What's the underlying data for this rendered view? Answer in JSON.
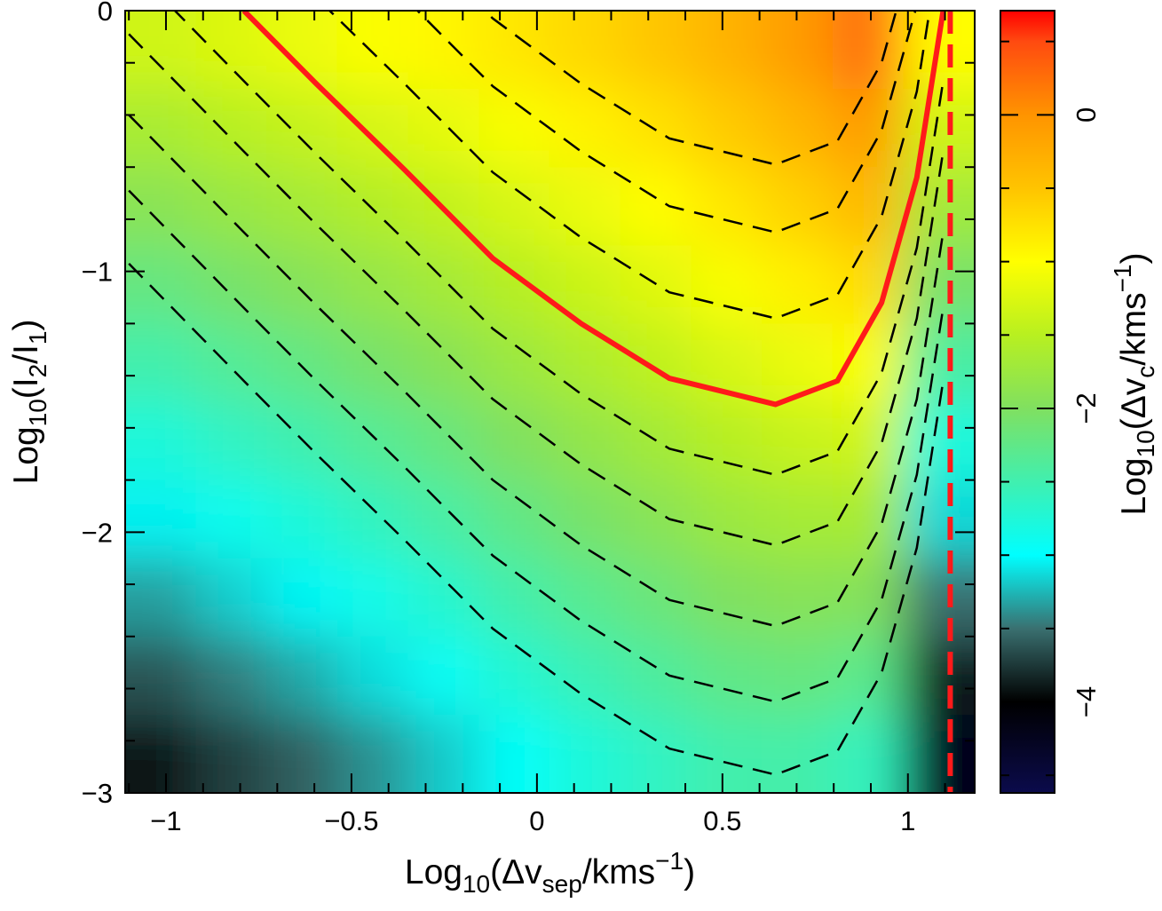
{
  "chart_data": {
    "type": "heatmap",
    "xlabel": [
      {
        "text": "Log"
      },
      {
        "text": "10",
        "style": "sub"
      },
      {
        "text": "(Δv"
      },
      {
        "text": "sep",
        "style": "sub"
      },
      {
        "text": "/kms"
      },
      {
        "text": "−1",
        "style": "sup"
      },
      {
        "text": ")"
      }
    ],
    "ylabel": [
      {
        "text": "Log"
      },
      {
        "text": "10",
        "style": "sub"
      },
      {
        "text": "(I"
      },
      {
        "text": "2",
        "style": "sub"
      },
      {
        "text": "/I"
      },
      {
        "text": "1",
        "style": "sub"
      },
      {
        "text": ")"
      }
    ],
    "colorbar_label": [
      {
        "text": "Log"
      },
      {
        "text": "10",
        "style": "sub"
      },
      {
        "text": "(Δv"
      },
      {
        "text": "c",
        "style": "sub"
      },
      {
        "text": "/kms"
      },
      {
        "text": "−1",
        "style": "sup"
      },
      {
        "text": ")"
      }
    ],
    "xlim": [
      -1.11,
      1.18
    ],
    "ylim": [
      -3,
      0
    ],
    "xticks": [
      {
        "value": -1,
        "label": "−1"
      },
      {
        "value": -0.5,
        "label": "−0.5"
      },
      0,
      0.5,
      1
    ],
    "yticks": [
      0,
      {
        "value": -1,
        "label": "−1"
      },
      {
        "value": -2,
        "label": "−2"
      },
      {
        "value": -3,
        "label": "−3"
      }
    ],
    "xminor": [
      -1.1,
      -0.9,
      -0.8,
      -0.7,
      -0.6,
      -0.4,
      -0.3,
      -0.2,
      -0.1,
      0.1,
      0.2,
      0.3,
      0.4,
      0.6,
      0.7,
      0.8,
      0.9,
      1.1
    ],
    "yminor": [
      -0.2,
      -0.4,
      -0.6,
      -0.8,
      -1.2,
      -1.4,
      -1.6,
      -1.8,
      -2.2,
      -2.4,
      -2.6,
      -2.8
    ],
    "clim": [
      -4.62,
      0.71
    ],
    "cticks": [
      0,
      {
        "value": -2,
        "label": "−2"
      },
      {
        "value": -4,
        "label": "−4"
      }
    ],
    "cminor": [
      0.5,
      -0.5,
      -1,
      -1.5,
      -2.5,
      -3,
      -3.5,
      -4.5
    ],
    "colormap": [
      {
        "value": -4.62,
        "color": "#0b0b4c"
      },
      {
        "value": -4.0,
        "color": "#000000"
      },
      {
        "value": -3.5,
        "color": "#3a7070"
      },
      {
        "value": -3.0,
        "color": "#00ffff"
      },
      {
        "value": -2.0,
        "color": "#80e060"
      },
      {
        "value": -1.5,
        "color": "#b8f020"
      },
      {
        "value": -1.0,
        "color": "#ffff00"
      },
      {
        "value": -0.5,
        "color": "#ffc400"
      },
      {
        "value": 0.0,
        "color": "#ff9400"
      },
      {
        "value": 0.5,
        "color": "#ff4a10"
      },
      {
        "value": 0.71,
        "color": "#ff0000"
      }
    ],
    "x": [
      -1.015,
      -0.824,
      -0.634,
      -0.443,
      -0.252,
      -0.062,
      0.129,
      0.32,
      0.511,
      0.701,
      0.892,
      1.083
    ],
    "y": [
      -0.15,
      -0.45,
      -0.75,
      -1.05,
      -1.35,
      -1.65,
      -1.95,
      -2.25,
      -2.55,
      -2.85
    ],
    "z": [
      [
        -1.34,
        -1.24,
        -1.14,
        -1.03,
        -0.93,
        -0.8,
        -0.67,
        -0.52,
        -0.32,
        -0.08,
        0.24,
        -0.98
      ],
      [
        -1.63,
        -1.51,
        -1.41,
        -1.29,
        -1.18,
        -1.04,
        -0.9,
        -0.75,
        -0.56,
        -0.35,
        -0.07,
        -1.34
      ],
      [
        -1.91,
        -1.79,
        -1.68,
        -1.55,
        -1.43,
        -1.28,
        -1.14,
        -0.99,
        -0.8,
        -0.61,
        -0.39,
        -1.7
      ],
      [
        -2.2,
        -2.07,
        -1.95,
        -1.81,
        -1.68,
        -1.52,
        -1.37,
        -1.22,
        -1.04,
        -0.87,
        -0.7,
        -2.06
      ],
      [
        -2.48,
        -2.34,
        -2.22,
        -2.07,
        -1.93,
        -1.76,
        -1.6,
        -1.45,
        -1.28,
        -1.14,
        -1.02,
        -2.42
      ],
      [
        -2.77,
        -2.62,
        -2.49,
        -2.34,
        -2.19,
        -2.0,
        -1.84,
        -1.69,
        -1.52,
        -1.4,
        -1.33,
        -2.78
      ],
      [
        -3.05,
        -2.89,
        -2.76,
        -2.6,
        -2.44,
        -2.24,
        -2.07,
        -1.92,
        -1.76,
        -1.67,
        -1.65,
        -3.14
      ],
      [
        -3.34,
        -3.17,
        -3.03,
        -2.86,
        -2.69,
        -2.48,
        -2.31,
        -2.16,
        -2.0,
        -1.93,
        -1.96,
        -3.5
      ],
      [
        -3.62,
        -3.45,
        -3.3,
        -3.12,
        -2.94,
        -2.72,
        -2.54,
        -2.39,
        -2.24,
        -2.19,
        -2.28,
        -3.86
      ],
      [
        -3.91,
        -3.72,
        -3.57,
        -3.38,
        -3.19,
        -2.96,
        -2.77,
        -2.62,
        -2.48,
        -2.46,
        -2.59,
        -4.22
      ]
    ],
    "contour_x": [
      -1.1,
      -0.79,
      -0.595,
      -0.357,
      -0.119,
      0.119,
      0.357,
      0.643,
      0.81,
      0.929,
      1.024,
      1.095
    ],
    "contour_color": "#000000",
    "contours": [
      [
        1.37,
        0.92,
        0.64,
        0.31,
        -0.03,
        -0.28,
        -0.49,
        -0.59,
        -0.5,
        -0.2,
        0.28,
        0.92
      ],
      [
        1.11,
        0.66,
        0.38,
        0.05,
        -0.29,
        -0.54,
        -0.75,
        -0.85,
        -0.76,
        -0.46,
        0.02,
        0.66
      ],
      [
        0.78,
        0.33,
        0.05,
        -0.28,
        -0.62,
        -0.87,
        -1.08,
        -1.18,
        -1.09,
        -0.79,
        -0.31,
        0.33
      ],
      [
        0.18,
        -0.27,
        -0.55,
        -0.88,
        -1.22,
        -1.47,
        -1.68,
        -1.78,
        -1.69,
        -1.39,
        -0.91,
        -0.27
      ],
      [
        -0.09,
        -0.54,
        -0.82,
        -1.15,
        -1.49,
        -1.74,
        -1.95,
        -2.05,
        -1.96,
        -1.66,
        -1.18,
        -0.54
      ],
      [
        -0.4,
        -0.85,
        -1.13,
        -1.46,
        -1.8,
        -2.05,
        -2.26,
        -2.36,
        -2.27,
        -1.97,
        -1.49,
        -0.85
      ],
      [
        -0.69,
        -1.14,
        -1.42,
        -1.75,
        -2.09,
        -2.34,
        -2.55,
        -2.65,
        -2.56,
        -2.26,
        -1.78,
        -1.14
      ],
      [
        -0.97,
        -1.42,
        -1.7,
        -2.03,
        -2.37,
        -2.62,
        -2.83,
        -2.93,
        -2.84,
        -2.54,
        -2.06,
        -1.42
      ]
    ],
    "series": [
      {
        "color": "#ff1a1a",
        "dash": false,
        "x": [
          -0.79,
          -0.595,
          -0.357,
          -0.119,
          0.119,
          0.357,
          0.643,
          0.81,
          0.929,
          1.024,
          1.095
        ],
        "values": [
          0,
          -0.28,
          -0.61,
          -0.95,
          -1.2,
          -1.41,
          -1.51,
          -1.42,
          -1.12,
          -0.64,
          0
        ]
      },
      {
        "color": "#ff1a1a",
        "dash": true,
        "x": [
          1.114,
          1.114
        ],
        "values": [
          0,
          -3
        ]
      }
    ]
  }
}
